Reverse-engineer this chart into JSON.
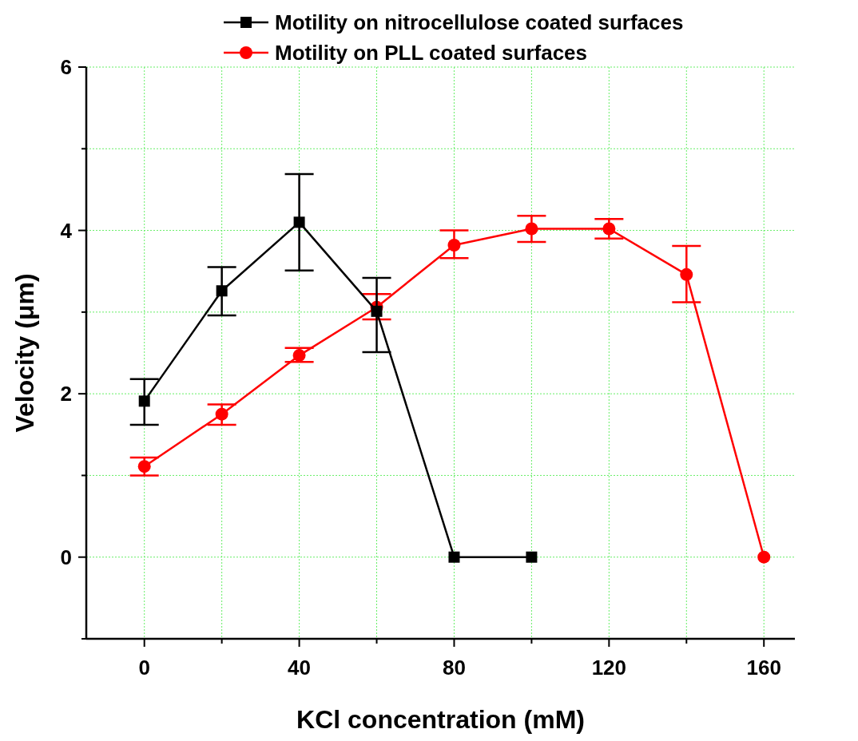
{
  "chart_data": {
    "type": "line",
    "xlabel": "KCl concentration (mM)",
    "ylabel": "Velocity (μm)",
    "xlim": [
      -15,
      168
    ],
    "ylim": [
      -1,
      6
    ],
    "xticks": [
      0,
      {
        "value": 20,
        "label": null
      },
      40,
      {
        "value": 60,
        "label": null
      },
      80,
      {
        "value": 100,
        "label": null
      },
      120,
      {
        "value": 140,
        "label": null
      },
      160
    ],
    "yticks": [
      {
        "value": -1,
        "label": null
      },
      0,
      {
        "value": 1,
        "label": null
      },
      2,
      {
        "value": 3,
        "label": null
      },
      4,
      {
        "value": 5,
        "label": null
      },
      6
    ],
    "grid": true,
    "legend": "top right",
    "series": [
      {
        "name": "Motility on nitrocellulose coated surfaces",
        "color": "#000000",
        "marker": "square",
        "x": [
          0,
          20,
          40,
          60,
          80,
          100
        ],
        "values": [
          1.91,
          3.26,
          4.1,
          3.01,
          0,
          0
        ],
        "errors": [
          [
            1.62,
            2.18
          ],
          [
            2.96,
            3.55
          ],
          [
            3.51,
            4.69
          ],
          [
            2.51,
            3.42
          ],
          null,
          null
        ]
      },
      {
        "name": "Motility on PLL coated surfaces",
        "color": "#ff0000",
        "marker": "circle",
        "x": [
          0,
          20,
          40,
          60,
          80,
          100,
          120,
          140,
          160
        ],
        "values": [
          1.11,
          1.75,
          2.47,
          3.06,
          3.82,
          4.02,
          4.02,
          3.46,
          0
        ],
        "errors": [
          [
            1.0,
            1.22
          ],
          [
            1.62,
            1.87
          ],
          [
            2.39,
            2.56
          ],
          [
            2.91,
            3.22
          ],
          [
            3.66,
            4.0
          ],
          [
            3.86,
            4.18
          ],
          [
            3.9,
            4.14
          ],
          [
            3.12,
            3.81
          ],
          null
        ]
      }
    ]
  }
}
